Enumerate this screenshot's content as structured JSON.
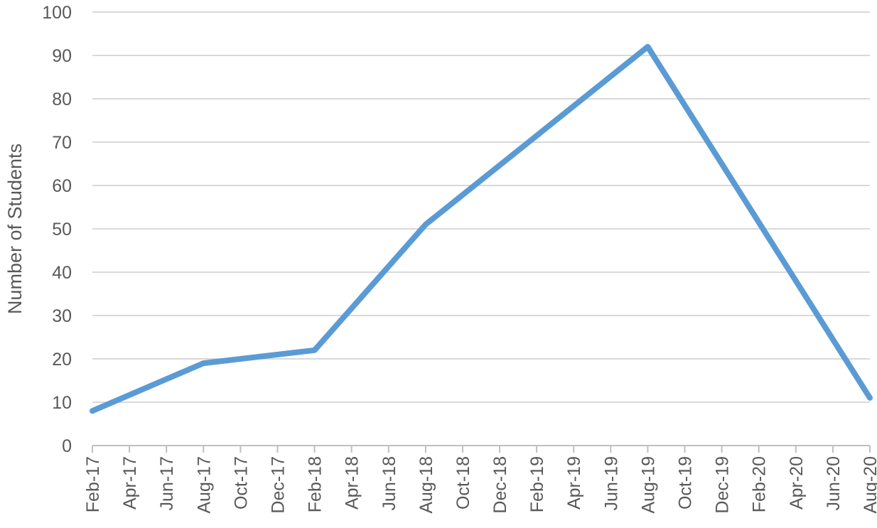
{
  "chart_data": {
    "type": "line",
    "title": "",
    "xlabel": "",
    "ylabel": "Number of Students",
    "ylim": [
      0,
      100
    ],
    "yticks": [
      0,
      10,
      20,
      30,
      40,
      50,
      60,
      70,
      80,
      90,
      100
    ],
    "xticks": [
      "Feb-17",
      "Apr-17",
      "Jun-17",
      "Aug-17",
      "Oct-17",
      "Dec-17",
      "Feb-18",
      "Apr-18",
      "Jun-18",
      "Aug-18",
      "Oct-18",
      "Dec-18",
      "Feb-19",
      "Apr-19",
      "Jun-19",
      "Aug-19",
      "Oct-19",
      "Dec-19",
      "Feb-20",
      "Apr-20",
      "Jun-20",
      "Aug-20"
    ],
    "xlim": [
      "2017-02",
      "2020-08"
    ],
    "grid": true,
    "legend": "none",
    "series": [
      {
        "color": "#5b9bd5",
        "x": [
          "2017-02",
          "2017-08",
          "2018-02",
          "2018-08",
          "2019-08",
          "2020-08"
        ],
        "y": [
          8,
          19,
          22,
          51,
          92,
          11
        ]
      }
    ]
  }
}
